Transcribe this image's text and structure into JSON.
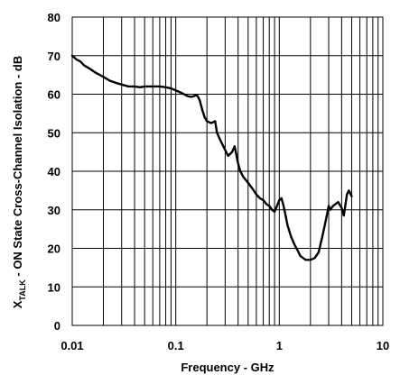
{
  "chart_data": {
    "type": "line",
    "title": "",
    "xlabel": "Frequency - GHz",
    "ylabel": {
      "prefix": "X",
      "subscript": "TALK",
      "suffix": " - ON State Cross-Channel Isolation - dB"
    },
    "x_scale": "log",
    "xlim": [
      0.01,
      10
    ],
    "ylim": [
      0,
      80
    ],
    "x_ticks": [
      {
        "value": 0.01,
        "label": "0.01"
      },
      {
        "value": 0.1,
        "label": "0.1"
      },
      {
        "value": 1,
        "label": "1"
      },
      {
        "value": 10,
        "label": "10"
      }
    ],
    "y_ticks": [
      {
        "value": 0,
        "label": "0"
      },
      {
        "value": 10,
        "label": "10"
      },
      {
        "value": 20,
        "label": "20"
      },
      {
        "value": 30,
        "label": "30"
      },
      {
        "value": 40,
        "label": "40"
      },
      {
        "value": 50,
        "label": "50"
      },
      {
        "value": 60,
        "label": "60"
      },
      {
        "value": 70,
        "label": "70"
      },
      {
        "value": 80,
        "label": "80"
      }
    ],
    "grid": true,
    "line_color": "#000000",
    "series": [
      {
        "x": [
          0.01,
          0.011,
          0.012,
          0.013,
          0.015,
          0.017,
          0.02,
          0.023,
          0.026,
          0.03,
          0.035,
          0.04,
          0.045,
          0.05,
          0.06,
          0.07,
          0.08,
          0.09,
          0.1,
          0.11,
          0.12,
          0.13,
          0.14,
          0.15,
          0.16,
          0.17,
          0.18,
          0.19,
          0.2,
          0.22,
          0.24,
          0.25,
          0.27,
          0.3,
          0.32,
          0.35,
          0.37,
          0.38,
          0.4,
          0.42,
          0.45,
          0.5,
          0.55,
          0.6,
          0.65,
          0.7,
          0.75,
          0.8,
          0.85,
          0.9,
          0.95,
          1.0,
          1.05,
          1.1,
          1.15,
          1.2,
          1.3,
          1.4,
          1.5,
          1.6,
          1.8,
          2.0,
          2.2,
          2.4,
          2.6,
          2.8,
          3.0,
          3.1,
          3.3,
          3.5,
          3.7,
          4.0,
          4.2,
          4.5,
          4.7,
          5.0
        ],
        "y": [
          70,
          69,
          68.5,
          67.5,
          66.5,
          65.5,
          64.5,
          63.5,
          63,
          62.5,
          62,
          62,
          61.8,
          62,
          62,
          62,
          61.8,
          61.5,
          61,
          60.5,
          60,
          59.5,
          59.3,
          59.5,
          59.8,
          58.5,
          56,
          54,
          53,
          52.5,
          53,
          50,
          48,
          45.5,
          44,
          45,
          46.5,
          45,
          42,
          40,
          38.5,
          37,
          35.5,
          34,
          33,
          32.5,
          31.5,
          31,
          30,
          29.5,
          31,
          32.5,
          33,
          31,
          28.5,
          26,
          23,
          21,
          19.5,
          18,
          17,
          17,
          17.5,
          19,
          23,
          27,
          31,
          30,
          31,
          31.5,
          32,
          30.5,
          28.5,
          34,
          35,
          33.5
        ]
      }
    ]
  }
}
